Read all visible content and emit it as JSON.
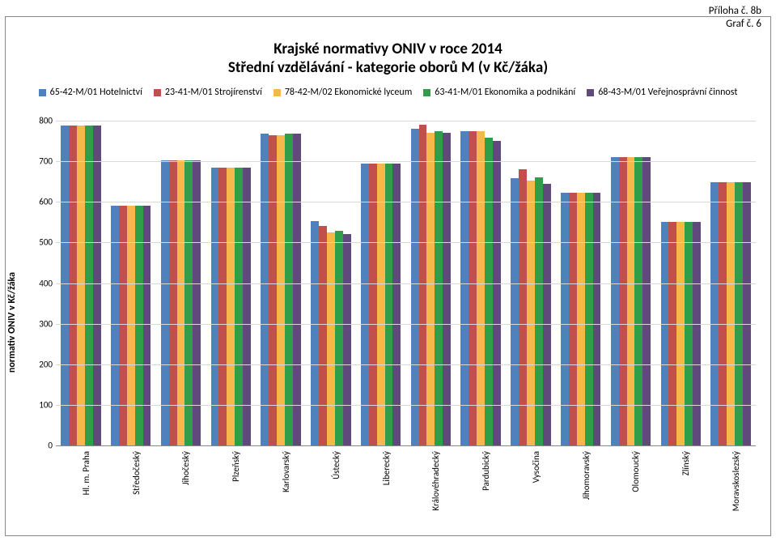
{
  "annotation": {
    "line1": "Příloha č. 8b",
    "line2": "Graf č. 6"
  },
  "title": {
    "line1": "Krajské normativy ONIV v roce 2014",
    "line2": "Střední vzdělávání - kategorie oborů M (v Kč/žáka)",
    "fontsize": 19
  },
  "ylabel": "normativ ONIV v Kč/žáka",
  "chart": {
    "type": "bar",
    "ylim": [
      0,
      800
    ],
    "yticks": [
      0,
      100,
      200,
      300,
      400,
      500,
      600,
      700,
      800
    ],
    "grid_color": "#d9d9d9",
    "background_color": "#ffffff",
    "categories": [
      "Hl. m. Praha",
      "Středočeský",
      "Jihočeský",
      "Plzeňský",
      "Karlovarský",
      "Ústecký",
      "Liberecký",
      "Královéhradecký",
      "Pardubický",
      "Vysočina",
      "Jihomoravský",
      "Olomoucký",
      "Zlínský",
      "Moravskoslezský"
    ],
    "series": [
      {
        "name": "65-42-M/01 Hotelnictví",
        "color": "#4f81bd"
      },
      {
        "name": "23-41-M/01 Strojírenství",
        "color": "#c0504d"
      },
      {
        "name": "78-42-M/02 Ekonomické lyceum",
        "color": "#f6b74b"
      },
      {
        "name": "63-41-M/01 Ekonomika a podnikání",
        "color": "#2e9e49"
      },
      {
        "name": "68-43-M/01 Veřejnosprávní činnost",
        "color": "#604a7b"
      }
    ],
    "values": [
      [
        788,
        788,
        788,
        788,
        788
      ],
      [
        590,
        590,
        590,
        590,
        590
      ],
      [
        702,
        702,
        702,
        702,
        702
      ],
      [
        685,
        685,
        685,
        685,
        685
      ],
      [
        768,
        765,
        765,
        768,
        768
      ],
      [
        552,
        540,
        525,
        528,
        520
      ],
      [
        695,
        695,
        695,
        695,
        695
      ],
      [
        780,
        790,
        770,
        775,
        770
      ],
      [
        775,
        775,
        775,
        758,
        750
      ],
      [
        658,
        680,
        652,
        660,
        645
      ],
      [
        622,
        622,
        622,
        622,
        622
      ],
      [
        710,
        710,
        710,
        710,
        710
      ],
      [
        550,
        550,
        550,
        550,
        550
      ],
      [
        648,
        648,
        648,
        648,
        648
      ]
    ],
    "label_fontsize": 11
  }
}
